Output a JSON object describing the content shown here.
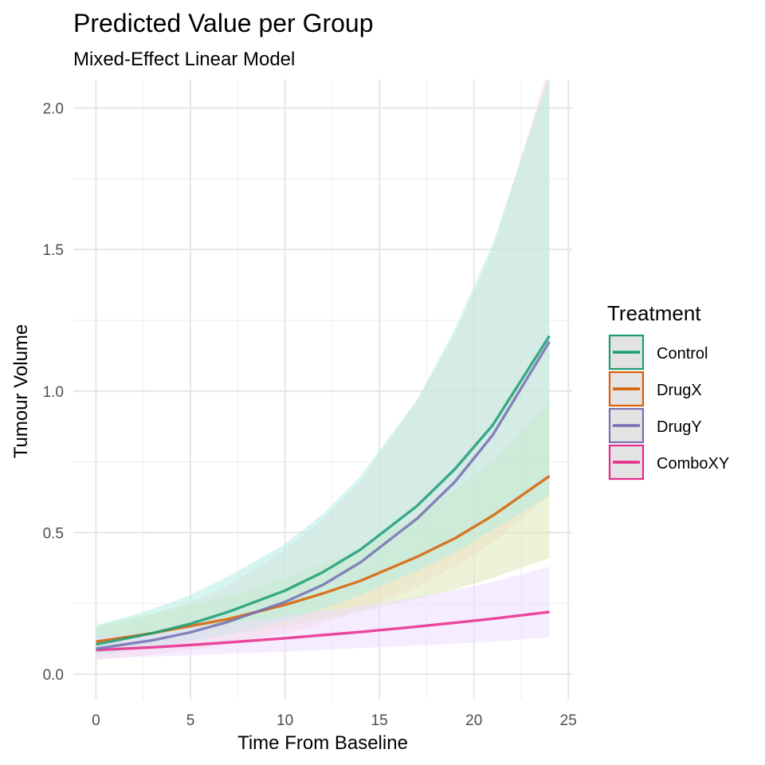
{
  "chart_data": {
    "type": "line",
    "title": "Predicted Value per Group",
    "subtitle": "Mixed-Effect Linear Model",
    "xlabel": "Time From Baseline",
    "ylabel": "Tumour Volume",
    "xlim": [
      -1.2,
      25.2
    ],
    "ylim": [
      -0.09,
      2.1
    ],
    "x_ticks": [
      0,
      5,
      10,
      15,
      20,
      25
    ],
    "x_tick_labels": [
      "0",
      "5",
      "10",
      "15",
      "20",
      "25"
    ],
    "y_ticks": [
      0.0,
      0.5,
      1.0,
      1.5,
      2.0
    ],
    "y_tick_labels": [
      "0.0",
      "0.5",
      "1.0",
      "1.5",
      "2.0"
    ],
    "grid": true,
    "legend": {
      "title": "Treatment",
      "position": "right"
    },
    "x": [
      0,
      3,
      5,
      7,
      10,
      12,
      14,
      17,
      19,
      21,
      24
    ],
    "series": [
      {
        "name": "Control",
        "color": "#1b9e77",
        "ribbon_color": "#b2ece3",
        "values": [
          0.105,
          0.145,
          0.178,
          0.22,
          0.295,
          0.36,
          0.44,
          0.595,
          0.725,
          0.88,
          1.195
        ],
        "lower": [
          0.065,
          0.095,
          0.115,
          0.14,
          0.19,
          0.23,
          0.28,
          0.365,
          0.43,
          0.51,
          0.63
        ],
        "upper": [
          0.17,
          0.23,
          0.28,
          0.345,
          0.46,
          0.565,
          0.7,
          0.97,
          1.22,
          1.52,
          2.12
        ]
      },
      {
        "name": "DrugX",
        "color": "#d95f02",
        "ribbon_color": "#dfe9b8",
        "values": [
          0.115,
          0.145,
          0.17,
          0.195,
          0.245,
          0.285,
          0.33,
          0.415,
          0.48,
          0.56,
          0.7
        ],
        "lower": [
          0.075,
          0.1,
          0.12,
          0.14,
          0.17,
          0.195,
          0.22,
          0.265,
          0.3,
          0.34,
          0.41
        ],
        "upper": [
          0.175,
          0.215,
          0.245,
          0.275,
          0.34,
          0.39,
          0.45,
          0.56,
          0.65,
          0.75,
          0.96
        ]
      },
      {
        "name": "DrugY",
        "color": "#7570b3",
        "ribbon_color": "#ffd6d2",
        "values": [
          0.09,
          0.12,
          0.148,
          0.185,
          0.255,
          0.315,
          0.395,
          0.55,
          0.68,
          0.845,
          1.175
        ],
        "lower": [
          0.05,
          0.07,
          0.085,
          0.105,
          0.145,
          0.18,
          0.225,
          0.31,
          0.38,
          0.465,
          0.63
        ],
        "upper": [
          0.16,
          0.21,
          0.255,
          0.31,
          0.44,
          0.545,
          0.68,
          0.97,
          1.2,
          1.5,
          2.15
        ]
      },
      {
        "name": "ComboXY",
        "color": "#e7298a",
        "ribbon_color": "#ecdcff",
        "values": [
          0.085,
          0.095,
          0.103,
          0.112,
          0.127,
          0.138,
          0.149,
          0.168,
          0.182,
          0.196,
          0.22
        ],
        "lower": [
          0.055,
          0.062,
          0.067,
          0.072,
          0.08,
          0.086,
          0.092,
          0.101,
          0.108,
          0.115,
          0.13
        ],
        "upper": [
          0.13,
          0.148,
          0.163,
          0.178,
          0.205,
          0.222,
          0.241,
          0.273,
          0.297,
          0.325,
          0.38
        ]
      }
    ]
  }
}
